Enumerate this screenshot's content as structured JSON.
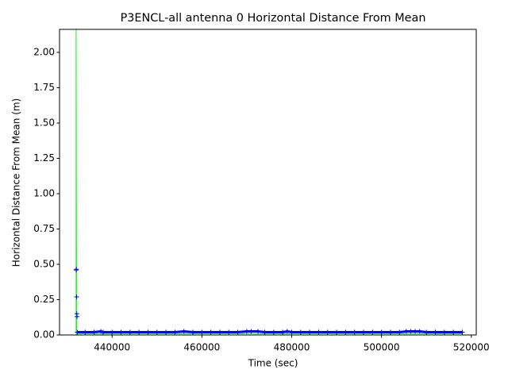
{
  "chart_data": {
    "type": "scatter",
    "title": "P3ENCL-all antenna 0 Horizontal Distance From Mean",
    "x_label": "Time (sec)",
    "y_label": "Horizontal Distance From Mean (m)",
    "xlim": [
      428300,
      521100
    ],
    "ylim": [
      0,
      2.163
    ],
    "xticks": [
      440000,
      460000,
      480000,
      500000,
      520000
    ],
    "yticks": [
      {
        "value": 0,
        "label": "0.00"
      },
      {
        "value": 0.25,
        "label": "0.25"
      },
      {
        "value": 0.5,
        "label": "0.50"
      },
      {
        "value": 0.75,
        "label": "0.75"
      },
      {
        "value": 1,
        "label": "1.00"
      },
      {
        "value": 1.25,
        "label": "1.25"
      },
      {
        "value": 1.5,
        "label": "1.50"
      },
      {
        "value": 1.75,
        "label": "1.75"
      },
      {
        "value": 2,
        "label": "2.00"
      }
    ],
    "grid": false,
    "series": [
      {
        "color": "#00ff00",
        "style": "line",
        "x": [
          432000,
          432000,
          432100,
          518000
        ],
        "values": [
          0,
          2.16,
          0.01,
          0.01
        ]
      },
      {
        "color": "#0000ff",
        "style": "marker",
        "x": [
          432000,
          432050,
          432100,
          432150,
          432200,
          432250,
          434000,
          436000,
          437500,
          438000,
          440000,
          442000,
          444000,
          446000,
          448000,
          450000,
          452000,
          454000,
          456000,
          458000,
          460000,
          462000,
          464000,
          466000,
          468000,
          470000,
          471000,
          472500,
          474000,
          476000,
          478000,
          479000,
          480000,
          482000,
          484000,
          486000,
          488000,
          490000,
          492000,
          494000,
          496000,
          498000,
          500000,
          502000,
          504000,
          505500,
          506500,
          507500,
          508500,
          510000,
          512000,
          514000,
          516000,
          518000
        ],
        "values": [
          0.46,
          0.465,
          0.27,
          0.15,
          0.13,
          0.02,
          0.02,
          0.02,
          0.025,
          0.02,
          0.02,
          0.02,
          0.02,
          0.02,
          0.02,
          0.02,
          0.02,
          0.02,
          0.025,
          0.02,
          0.02,
          0.02,
          0.02,
          0.02,
          0.02,
          0.025,
          0.025,
          0.025,
          0.02,
          0.02,
          0.02,
          0.025,
          0.02,
          0.02,
          0.02,
          0.02,
          0.02,
          0.02,
          0.02,
          0.02,
          0.02,
          0.02,
          0.02,
          0.02,
          0.02,
          0.025,
          0.025,
          0.025,
          0.025,
          0.02,
          0.02,
          0.02,
          0.02,
          0.02
        ]
      }
    ]
  }
}
